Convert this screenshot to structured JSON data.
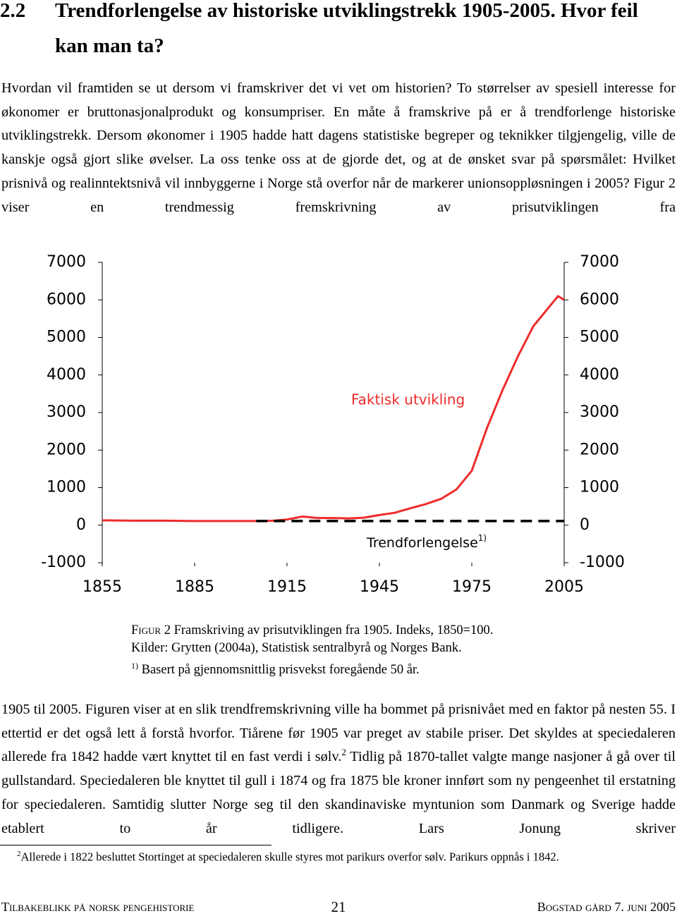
{
  "header": {
    "number": "2.2",
    "title": "Trendforlengelse av historiske utviklingstrekk 1905-2005. Hvor feil kan man ta?"
  },
  "paragraph_1": "Hvordan vil framtiden se ut dersom vi framskriver det vi vet om historien? To størrelser av spesiell interesse for økonomer er bruttonasjonalprodukt og konsumpriser. En måte å framskrive på er å trendforlenge historiske utviklingstrekk. Dersom økonomer i 1905 hadde hatt dagens statistiske begreper og teknikker tilgjengelig, ville de kanskje også gjort slike øvelser. La oss tenke oss at de gjorde det, og at de ønsket svar på spørsmålet: Hvilket prisnivå og realinntektsnivå vil innbyggerne i Norge stå overfor når de markerer unionsoppløsningen i 2005? Figur 2 viser en trendmessig fremskrivning av prisutviklingen fra",
  "chart_data": {
    "type": "line",
    "xlim": [
      1855,
      2005
    ],
    "xticks": [
      1855,
      1885,
      1915,
      1945,
      1975,
      2005
    ],
    "ylim": [
      -1000,
      7000
    ],
    "yticks": [
      -1000,
      0,
      1000,
      2000,
      3000,
      4000,
      5000,
      6000,
      7000
    ],
    "y2lim": [
      -1000,
      7000
    ],
    "y2ticks": [
      -1000,
      0,
      1000,
      2000,
      3000,
      4000,
      5000,
      6000,
      7000
    ],
    "series": [
      {
        "name": "Faktisk utvikling",
        "color": "#ee2b2b",
        "dash": false,
        "x": [
          1855,
          1865,
          1875,
          1885,
          1895,
          1905,
          1910,
          1915,
          1920,
          1925,
          1930,
          1935,
          1940,
          1945,
          1950,
          1955,
          1960,
          1965,
          1970,
          1975,
          1980,
          1985,
          1990,
          1995,
          2000,
          2003,
          2005
        ],
        "values": [
          130,
          120,
          120,
          110,
          110,
          110,
          115,
          150,
          230,
          190,
          190,
          180,
          200,
          270,
          330,
          450,
          560,
          700,
          950,
          1450,
          2600,
          3600,
          4500,
          5300,
          5800,
          6100,
          6000
        ]
      },
      {
        "name": "Trendforlengelse",
        "name_superscript": "1)",
        "color": "#000000",
        "dash": true,
        "x": [
          1905,
          2005
        ],
        "values": [
          110,
          110
        ]
      }
    ]
  },
  "caption": {
    "label": "Figur 2",
    "line_1": "Framskriving av prisutviklingen fra 1905. Indeks, 1850=100.",
    "line_2": "Kilder: Grytten (2004a), Statistisk sentralbyrå og Norges Bank.",
    "note_mark": "1)",
    "line_3": "Basert på gjennomsnittlig prisvekst foregående 50 år."
  },
  "paragraph_2": {
    "before": "1905 til 2005. Figuren viser at en slik trendfremskrivning ville ha bommet på prisnivået med en faktor på nesten 55. I ettertid er det også lett å forstå hvorfor. Tiårene før 1905 var preget av stabile priser. Det skyldes at speciedaleren allerede fra 1842 hadde vært knyttet til en fast verdi i sølv.",
    "footnote_ref": "2",
    "after": " Tidlig på 1870-tallet valgte mange nasjoner å gå over til gullstandard. Speciedaleren ble knyttet til gull i 1874 og fra 1875 ble kroner innført som ny pengeenhet til erstatning for speciedaleren. Samtidig slutter Norge seg til den skandinaviske myntunion som Danmark og Sverige hadde etablert to år tidligere. Lars Jonung skriver"
  },
  "footnote": {
    "mark": "2",
    "text": "Allerede i 1822 besluttet Stortinget at speciedaleren skulle styres mot parikurs overfor sølv. Parikurs oppnås i 1842."
  },
  "footer": {
    "left": "Tilbakeblikk på norsk pengehistorie",
    "page": "21",
    "right": "Bogstad gård 7. juni 2005"
  }
}
